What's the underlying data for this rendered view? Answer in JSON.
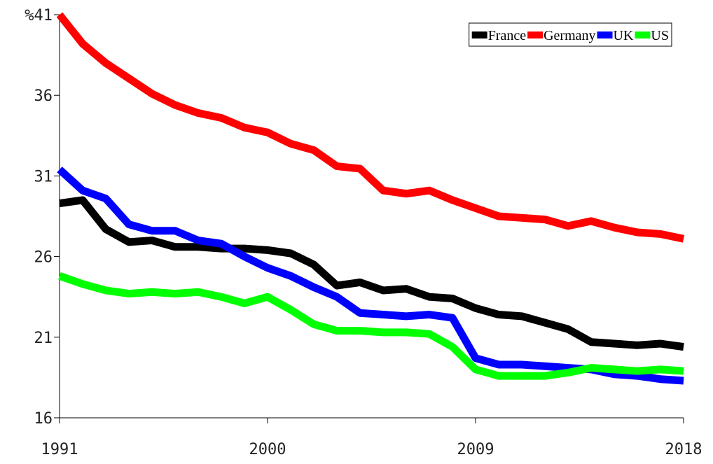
{
  "chart_data": {
    "type": "line",
    "x": [
      1991,
      1992,
      1993,
      1994,
      1995,
      1996,
      1997,
      1998,
      1999,
      2000,
      2001,
      2002,
      2003,
      2004,
      2005,
      2006,
      2007,
      2008,
      2009,
      2010,
      2011,
      2012,
      2013,
      2014,
      2015,
      2016,
      2017,
      2018
    ],
    "series": [
      {
        "name": "France",
        "color": "#000000",
        "values": [
          29.3,
          29.5,
          27.7,
          26.9,
          27.0,
          26.6,
          26.6,
          26.5,
          26.5,
          26.4,
          26.2,
          25.5,
          24.2,
          24.4,
          23.9,
          24.0,
          23.5,
          23.4,
          22.8,
          22.4,
          22.3,
          21.9,
          21.5,
          20.7,
          20.6,
          20.5,
          20.6,
          20.4
        ]
      },
      {
        "name": "Germany",
        "color": "#ff0000",
        "values": [
          41.0,
          39.2,
          38.0,
          37.05,
          36.1,
          35.4,
          34.9,
          34.6,
          34.0,
          33.7,
          33.0,
          32.6,
          31.6,
          31.45,
          30.1,
          29.9,
          30.1,
          29.5,
          29.0,
          28.5,
          28.4,
          28.3,
          27.9,
          28.2,
          27.8,
          27.5,
          27.4,
          27.1
        ]
      },
      {
        "name": "UK",
        "color": "#0000ff",
        "values": [
          31.4,
          30.1,
          29.6,
          28.0,
          27.6,
          27.6,
          27.0,
          26.8,
          26.0,
          25.3,
          24.8,
          24.1,
          23.5,
          22.5,
          22.4,
          22.3,
          22.4,
          22.2,
          19.7,
          19.3,
          19.3,
          19.2,
          19.1,
          19.0,
          18.7,
          18.6,
          18.4,
          18.3
        ]
      },
      {
        "name": "US",
        "color": "#00ff00",
        "values": [
          24.8,
          24.3,
          23.9,
          23.7,
          23.8,
          23.7,
          23.8,
          23.5,
          23.1,
          23.5,
          22.7,
          21.8,
          21.4,
          21.4,
          21.3,
          21.3,
          21.2,
          20.4,
          19.0,
          18.6,
          18.6,
          18.6,
          18.8,
          19.1,
          19.0,
          18.9,
          19.0,
          18.9
        ]
      }
    ],
    "xlim": [
      1991,
      2018
    ],
    "xticks": [
      1991,
      2000,
      2009,
      2018
    ],
    "ylim": [
      16,
      41
    ],
    "yticks": [
      16,
      21,
      26,
      31,
      36,
      {
        "value": 41,
        "label": "%41"
      }
    ],
    "legend": "top-right"
  }
}
